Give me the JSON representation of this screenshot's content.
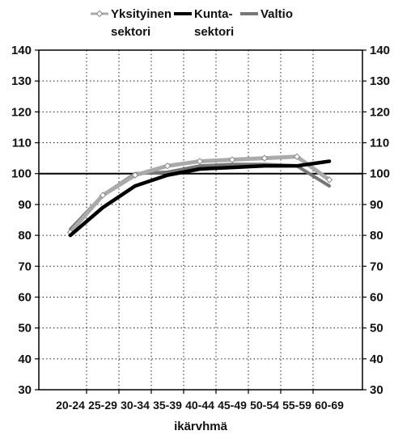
{
  "chart_data": {
    "type": "line",
    "categories": [
      "20-24",
      "25-29",
      "30-34",
      "35-39",
      "40-44",
      "45-49",
      "50-54",
      "55-59",
      "60-69"
    ],
    "series": [
      {
        "name": "Yksityinen sektori",
        "values": [
          81,
          93,
          99.5,
          102.5,
          104,
          104.5,
          105,
          105.5,
          98
        ],
        "color": "#aaaaaa",
        "marker": "diamond"
      },
      {
        "name": "Kunta-sektori",
        "values": [
          80,
          89,
          96,
          99.5,
          101.5,
          102,
          102.5,
          102.5,
          104
        ],
        "color": "#000000",
        "marker": "none"
      },
      {
        "name": "Valtio",
        "values": [
          82,
          93,
          100,
          100.5,
          102.5,
          103,
          103,
          102.5,
          96
        ],
        "color": "#777777",
        "marker": "none"
      }
    ],
    "legend_lines": {
      "Yksityinen sektori": [
        "Yksityinen",
        "sektori"
      ],
      "Kunta-sektori": [
        "Kunta-",
        "sektori"
      ],
      "Valtio": [
        "Valtio"
      ]
    },
    "reference_line": 100,
    "xlabel": "ikärvhmä",
    "ylabel": "",
    "ylim": [
      30,
      140
    ],
    "yticks": [
      30,
      40,
      50,
      60,
      70,
      80,
      90,
      100,
      110,
      120,
      130,
      140
    ],
    "grid": true,
    "legend_position": "top"
  }
}
